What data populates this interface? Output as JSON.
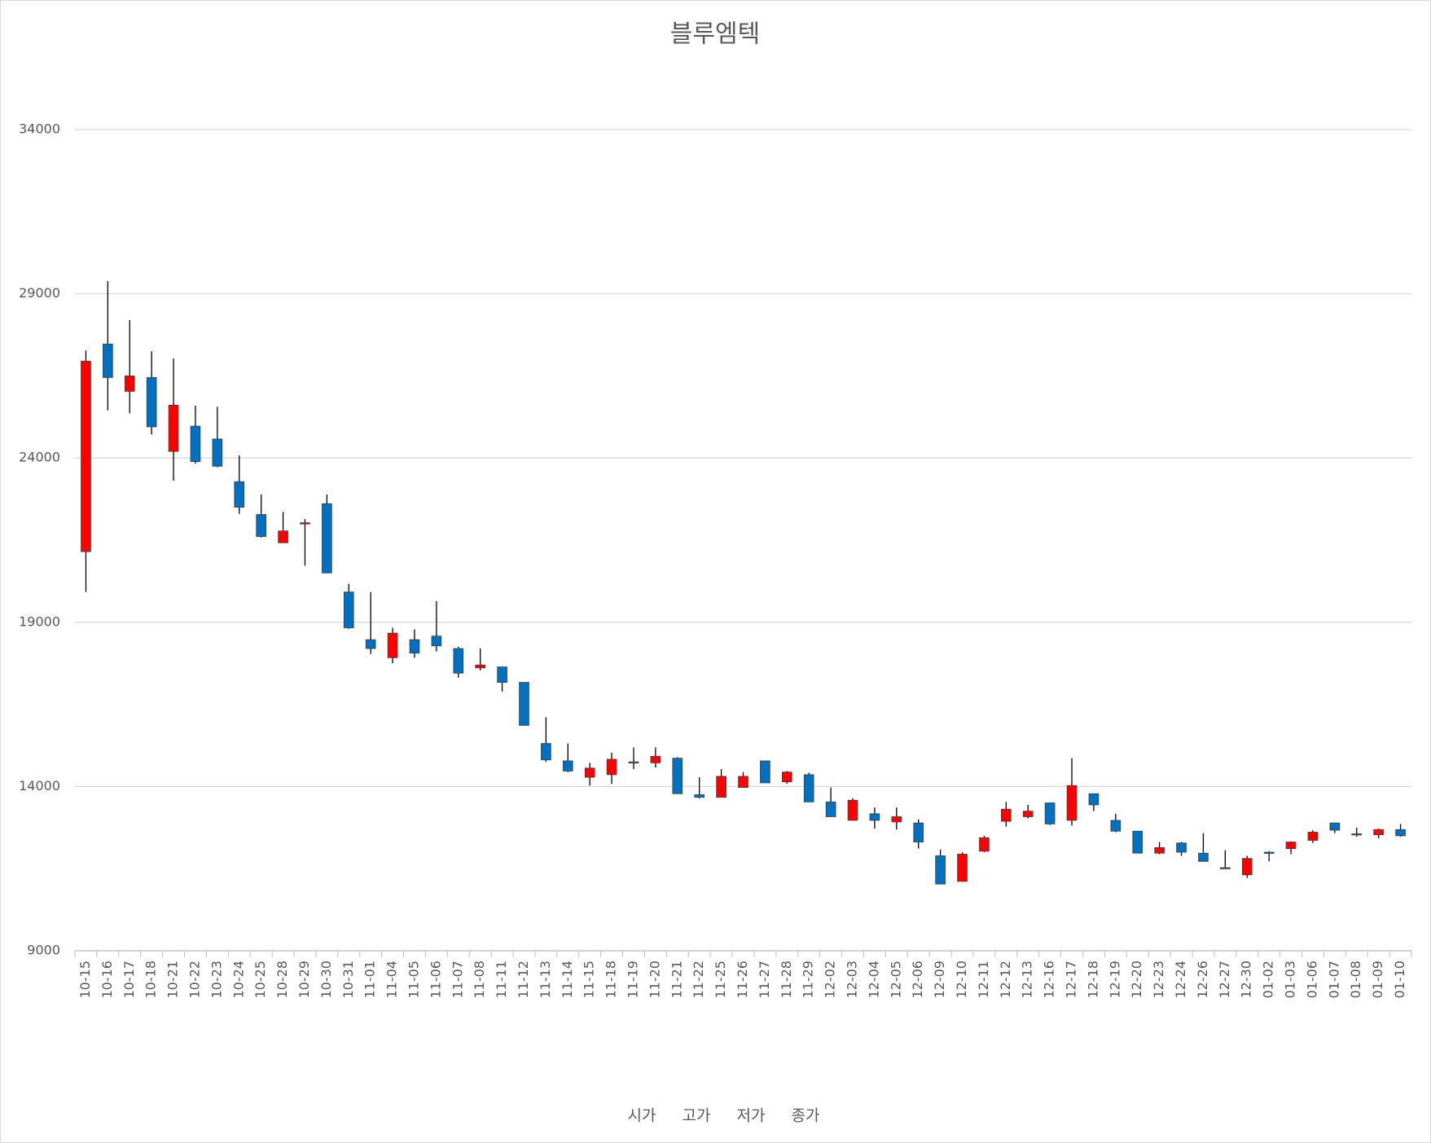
{
  "chart_data": {
    "type": "candlestick",
    "title": "블루엠텍",
    "categories": [
      "10-15",
      "10-16",
      "10-17",
      "10-18",
      "10-21",
      "10-22",
      "10-23",
      "10-24",
      "10-25",
      "10-28",
      "10-29",
      "10-30",
      "10-31",
      "11-01",
      "11-04",
      "11-05",
      "11-06",
      "11-07",
      "11-08",
      "11-11",
      "11-12",
      "11-13",
      "11-14",
      "11-15",
      "11-18",
      "11-19",
      "11-20",
      "11-21",
      "11-22",
      "11-25",
      "11-26",
      "11-27",
      "11-28",
      "11-29",
      "12-02",
      "12-03",
      "12-04",
      "12-05",
      "12-06",
      "12-09",
      "12-10",
      "12-11",
      "12-12",
      "12-13",
      "12-16",
      "12-17",
      "12-18",
      "12-19",
      "12-20",
      "12-23",
      "12-24",
      "12-26",
      "12-27",
      "12-30",
      "01-02",
      "01-03",
      "01-06",
      "01-07",
      "01-08",
      "01-09",
      "01-10"
    ],
    "series": [
      {
        "name": "시가",
        "values": [
          21150,
          27470,
          26030,
          26450,
          24200,
          24970,
          24580,
          23280,
          22280,
          21420,
          22000,
          22610,
          19920,
          18470,
          17920,
          18470,
          18580,
          18200,
          17610,
          17640,
          17170,
          15310,
          14780,
          14280,
          14360,
          14750,
          14720,
          14860,
          13750,
          13670,
          13970,
          14780,
          14140,
          14360,
          13530,
          12970,
          13170,
          12920,
          12890,
          11890,
          11110,
          12030,
          12940,
          13080,
          13500,
          12970,
          13780,
          12970,
          12640,
          11970,
          12280,
          11970,
          11530,
          11310,
          12000,
          12110,
          12360,
          12890,
          12560,
          12530,
          12690
        ]
      },
      {
        "name": "고가",
        "values": [
          27280,
          29390,
          28200,
          27250,
          27030,
          25590,
          25560,
          24080,
          22890,
          22360,
          22140,
          22890,
          20170,
          19920,
          18830,
          18780,
          19640,
          18250,
          18200,
          17640,
          17170,
          16110,
          15310,
          14720,
          15030,
          15190,
          15190,
          14890,
          14280,
          14530,
          14440,
          14780,
          14470,
          14420,
          13970,
          13640,
          13360,
          13360,
          13000,
          12080,
          12000,
          12500,
          13530,
          13440,
          13500,
          14860,
          13780,
          13170,
          12640,
          12310,
          12310,
          12580,
          12060,
          11890,
          12030,
          12330,
          12670,
          12890,
          12750,
          12720,
          12860
        ]
      },
      {
        "name": "저가",
        "values": [
          19920,
          25450,
          25360,
          24720,
          23310,
          23830,
          23720,
          22300,
          21580,
          21420,
          20720,
          20500,
          18800,
          18030,
          17750,
          17920,
          18110,
          17310,
          17530,
          16890,
          15860,
          14750,
          14440,
          14030,
          14080,
          14530,
          14580,
          13780,
          13640,
          13670,
          13970,
          14110,
          14080,
          13530,
          13080,
          12970,
          12720,
          12690,
          12110,
          11030,
          11110,
          12000,
          12780,
          13030,
          12830,
          12810,
          13250,
          12610,
          11970,
          11940,
          11890,
          11720,
          11500,
          11220,
          11720,
          11940,
          12280,
          12580,
          12470,
          12420,
          12470
        ]
      },
      {
        "name": "종가",
        "values": [
          26950,
          26450,
          26500,
          24950,
          25610,
          23890,
          23750,
          22500,
          21610,
          21780,
          22030,
          20500,
          18830,
          18200,
          18670,
          18060,
          18280,
          17450,
          17700,
          17170,
          15860,
          14810,
          14470,
          14560,
          14830,
          14750,
          14920,
          13780,
          13670,
          14310,
          14310,
          14110,
          14440,
          13530,
          13080,
          13580,
          12970,
          13080,
          12310,
          11030,
          11940,
          12440,
          13310,
          13250,
          12860,
          14030,
          13440,
          12640,
          11970,
          12140,
          12000,
          11720,
          11530,
          11810,
          12000,
          12310,
          12610,
          12670,
          12530,
          12690,
          12500
        ]
      }
    ],
    "up_color": "#ff0000",
    "down_color": "#0070c0",
    "ylim": [
      9000,
      34000
    ],
    "yticks": [
      9000,
      14000,
      19000,
      24000,
      29000,
      34000
    ],
    "grid": true
  }
}
